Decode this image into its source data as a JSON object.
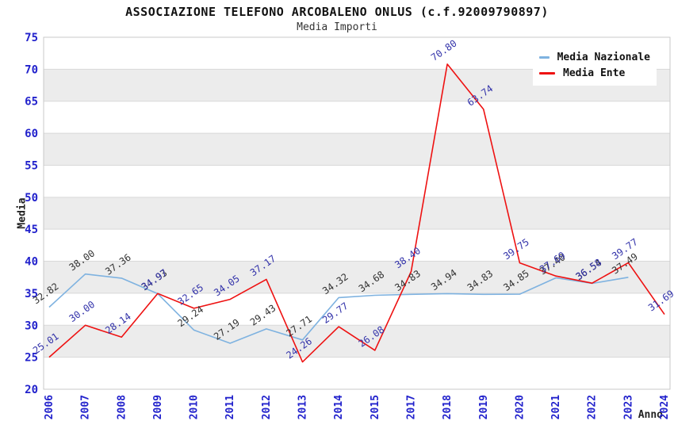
{
  "chart_data": {
    "type": "line",
    "title": "ASSOCIAZIONE TELEFONO ARCOBALENO ONLUS (c.f.92009790897)",
    "subtitle": "Media Importi",
    "xlabel": "Anno",
    "ylabel": "Media",
    "ylim": [
      20,
      75
    ],
    "ytick_step": 5,
    "yticks": [
      20,
      25,
      30,
      35,
      40,
      45,
      50,
      55,
      60,
      65,
      70,
      75
    ],
    "grid": "alternating-horizontal-bands",
    "legend_position": "top-right-inside",
    "categories": [
      "2006",
      "2007",
      "2008",
      "2009",
      "2010",
      "2011",
      "2012",
      "2013",
      "2014",
      "2015",
      "2017",
      "2018",
      "2019",
      "2020",
      "2021",
      "2022",
      "2023",
      "2024"
    ],
    "series": [
      {
        "name": "Media Nazionale",
        "color": "#7EB2E0",
        "label_color": "#333333",
        "values": [
          32.82,
          38.0,
          37.36,
          34.93,
          29.24,
          27.19,
          29.43,
          27.71,
          34.32,
          34.68,
          34.83,
          34.94,
          34.83,
          34.85,
          37.4,
          36.54,
          37.49,
          null
        ],
        "labels": [
          "32.82",
          "38.00",
          "37.36",
          "34.93",
          "29.24",
          "27.19",
          "29.43",
          "27.71",
          "34.32",
          "34.68",
          "34.83",
          "34.94",
          "34.83",
          "34.85",
          "37.40",
          "36.54",
          "37.49",
          ""
        ]
      },
      {
        "name": "Media Ente",
        "color": "#EE1111",
        "label_color": "#3333AA",
        "values": [
          25.01,
          30.0,
          28.14,
          34.97,
          32.65,
          34.05,
          37.17,
          24.26,
          29.77,
          26.08,
          38.4,
          70.8,
          63.74,
          39.75,
          37.69,
          36.58,
          39.77,
          31.69
        ],
        "labels": [
          "25.01",
          "30.00",
          "28.14",
          "34.97",
          "32.65",
          "34.05",
          "37.17",
          "24.26",
          "29.77",
          "26.08",
          "38.40",
          "70.80",
          "63.74",
          "39.75",
          "37.69",
          "36.58",
          "39.77",
          "31.69"
        ]
      }
    ],
    "style": {
      "tick_label_color": "#2222CC",
      "band_gray": "#ECECEC",
      "band_white": "#FFFFFF",
      "gridline_color": "#D9D9D9",
      "plot_border_color": "#C9C9C9",
      "title_color": "#111111",
      "subtitle_color": "#333333"
    }
  }
}
